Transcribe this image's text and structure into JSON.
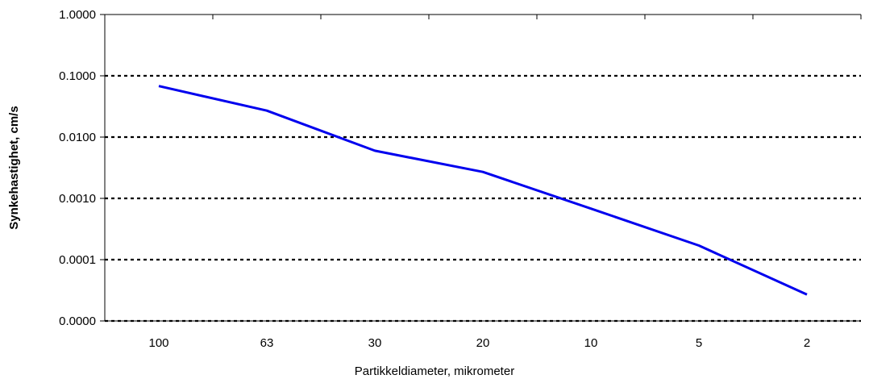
{
  "chart_data": {
    "type": "line",
    "title": "",
    "xlabel": "Partikkeldiameter, mikrometer",
    "ylabel": "Synkehastighet, cm/s",
    "y_scale": "log",
    "ylim": [
      1e-05,
      1.0
    ],
    "y_ticks": [
      {
        "value": 1.0,
        "label": "1.0000"
      },
      {
        "value": 0.1,
        "label": "0.1000"
      },
      {
        "value": 0.01,
        "label": "0.0100"
      },
      {
        "value": 0.001,
        "label": "0.0010"
      },
      {
        "value": 0.0001,
        "label": "0.0001"
      },
      {
        "value": 1e-05,
        "label": "0.0000"
      }
    ],
    "gridlines": "horizontal dotted",
    "categories": [
      "100",
      "63",
      "30",
      "20",
      "10",
      "5",
      "2"
    ],
    "series": [
      {
        "values": [
          0.068,
          0.027,
          0.006,
          0.0027,
          0.00068,
          0.00017,
          2.7e-05
        ],
        "color": "#0000ee"
      }
    ]
  }
}
